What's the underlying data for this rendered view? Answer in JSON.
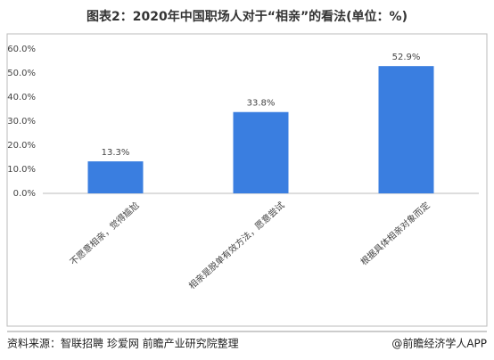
{
  "chart_data": {
    "type": "bar",
    "title": "图表2：2020年中国职场人对于“相亲”的看法(单位：%)",
    "categories": [
      "不愿意相亲，觉得尴尬",
      "相亲是脱单有效方法，愿意尝试",
      "根据具体相亲对象而定"
    ],
    "values": [
      13.3,
      33.8,
      52.9
    ],
    "value_labels": [
      "13.3%",
      "33.8%",
      "52.9%"
    ],
    "color": "#3a7ee0",
    "ylim": [
      0,
      60
    ],
    "yticks": [
      {
        "value": 0,
        "label": "0.0%"
      },
      {
        "value": 10,
        "label": "10.0%"
      },
      {
        "value": 20,
        "label": "20.0%"
      },
      {
        "value": 30,
        "label": "30.0%"
      },
      {
        "value": 40,
        "label": "40.0%"
      },
      {
        "value": 50,
        "label": "50.0%"
      },
      {
        "value": 60,
        "label": "60.0%"
      }
    ],
    "source": "资料来源：智联招聘 珍爱网 前瞻产业研究院整理",
    "credit": "@前瞻经济学人APP"
  }
}
